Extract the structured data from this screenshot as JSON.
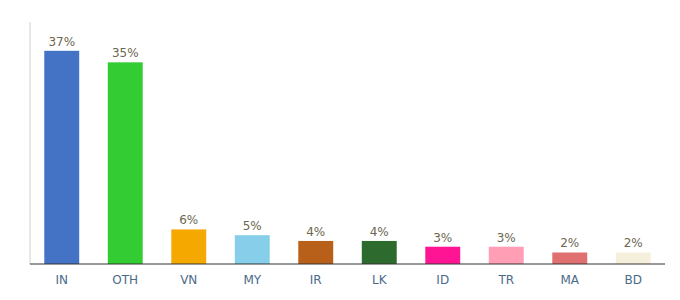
{
  "chart_data": {
    "type": "bar",
    "categories": [
      "IN",
      "OTH",
      "VN",
      "MY",
      "IR",
      "LK",
      "ID",
      "TR",
      "MA",
      "BD"
    ],
    "values": [
      37,
      35,
      6,
      5,
      4,
      4,
      3,
      3,
      2,
      2
    ],
    "value_labels": [
      "37%",
      "35%",
      "6%",
      "5%",
      "4%",
      "4%",
      "3%",
      "3%",
      "2%",
      "2%"
    ],
    "colors": [
      "#4472c4",
      "#33cc33",
      "#f5a800",
      "#87ceeb",
      "#b8601a",
      "#2d6a2d",
      "#ff1493",
      "#ff9eb5",
      "#e07070",
      "#f5f0dc"
    ],
    "ylim": [
      0,
      42
    ],
    "data_labels": true,
    "tick_labels": "x"
  }
}
